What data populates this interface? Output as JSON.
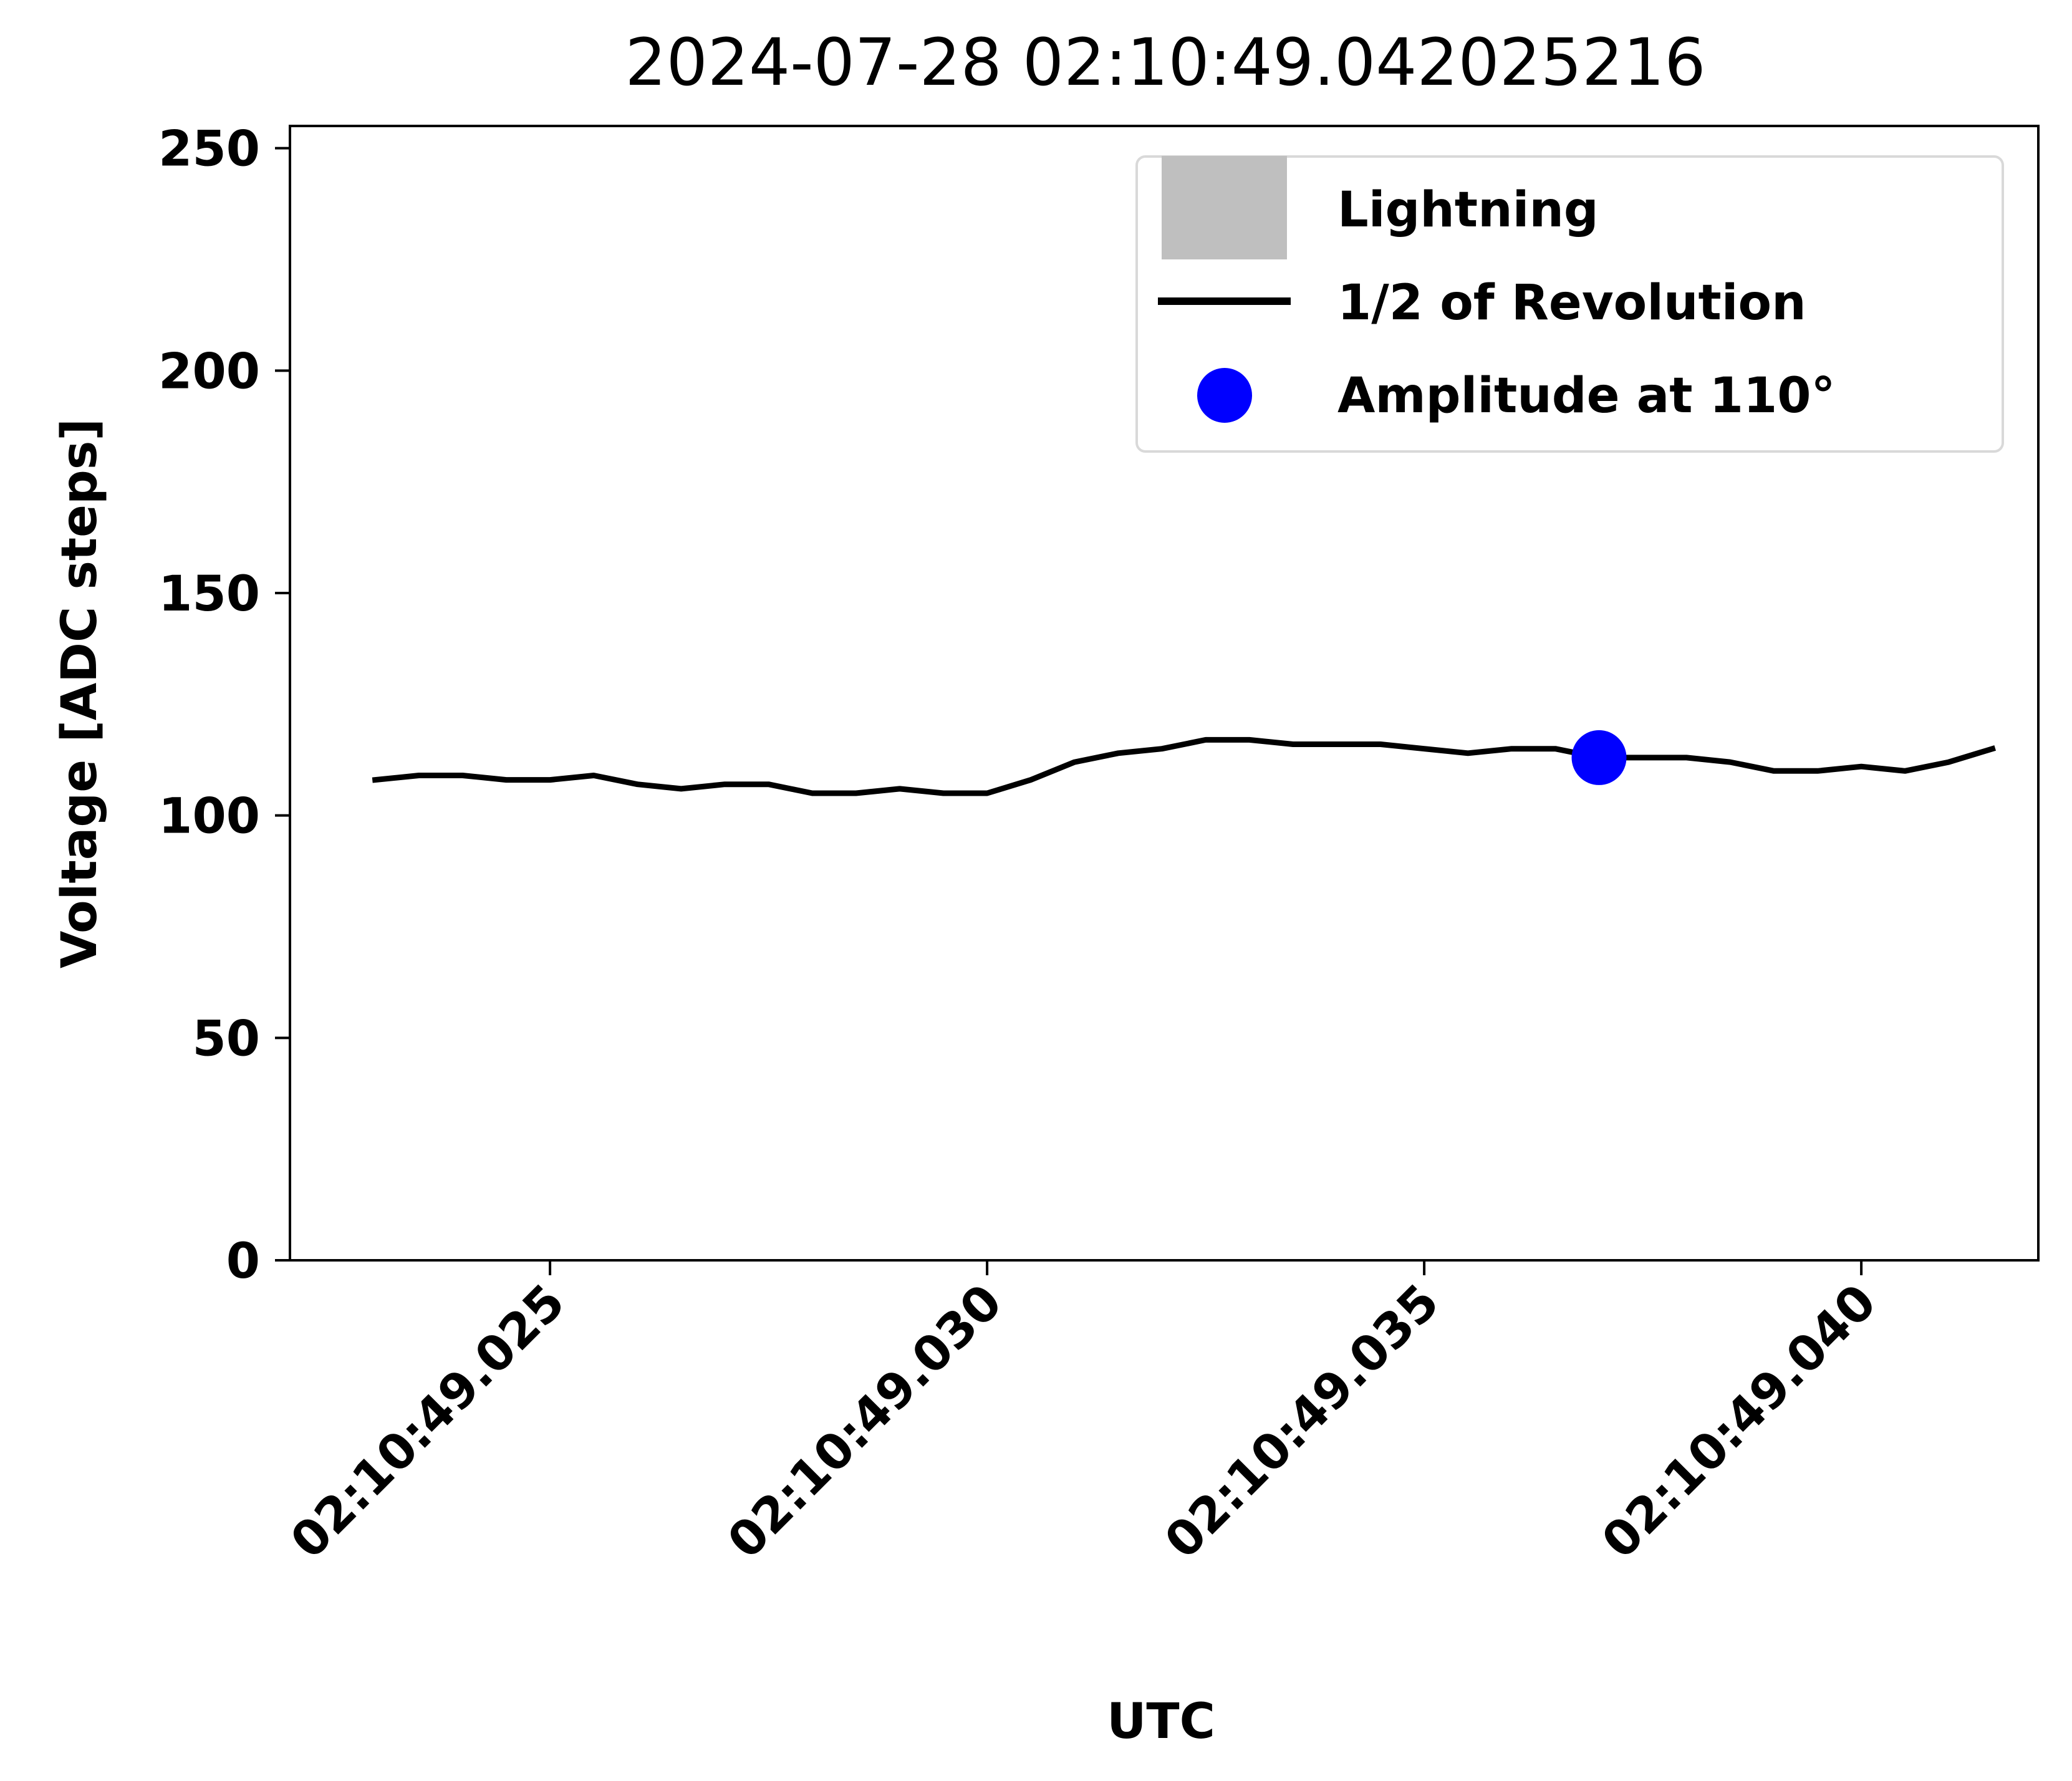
{
  "chart_data": {
    "type": "line",
    "title": "2024-07-28 02:10:49.042025216",
    "xlabel": "UTC",
    "ylabel": "Voltage  [ADC steps]",
    "ylim": [
      0,
      255
    ],
    "xlim": [
      "02:10:49.022025",
      "02:10:49.042025"
    ],
    "y_ticks": [
      0,
      50,
      100,
      150,
      200,
      250
    ],
    "x_ticks": [
      "02:10:49.025",
      "02:10:49.030",
      "02:10:49.035",
      "02:10:49.040"
    ],
    "grid": false,
    "legend_position": "top-right",
    "series": [
      {
        "name": "1/2 of Revolution",
        "color": "#000000",
        "x": [
          "02:10:49.023",
          "02:10:49.0235",
          "02:10:49.024",
          "02:10:49.0245",
          "02:10:49.025",
          "02:10:49.0255",
          "02:10:49.026",
          "02:10:49.0265",
          "02:10:49.027",
          "02:10:49.0275",
          "02:10:49.028",
          "02:10:49.0285",
          "02:10:49.029",
          "02:10:49.0295",
          "02:10:49.030",
          "02:10:49.0305",
          "02:10:49.031",
          "02:10:49.0315",
          "02:10:49.032",
          "02:10:49.0325",
          "02:10:49.033",
          "02:10:49.0335",
          "02:10:49.034",
          "02:10:49.0345",
          "02:10:49.035",
          "02:10:49.0355",
          "02:10:49.036",
          "02:10:49.0365",
          "02:10:49.037",
          "02:10:49.0375",
          "02:10:49.038",
          "02:10:49.0385",
          "02:10:49.039",
          "02:10:49.0395",
          "02:10:49.040",
          "02:10:49.0405",
          "02:10:49.041",
          "02:10:49.0415"
        ],
        "values": [
          108,
          109,
          109,
          108,
          108,
          109,
          107,
          106,
          107,
          107,
          105,
          105,
          106,
          105,
          105,
          108,
          112,
          114,
          115,
          117,
          117,
          116,
          116,
          116,
          115,
          114,
          115,
          115,
          113,
          113,
          113,
          112,
          110,
          110,
          111,
          110,
          112,
          115
        ]
      },
      {
        "name": "Amplitude at 110°",
        "color": "#0000ff",
        "marker": "circle",
        "x": [
          "02:10:49.037"
        ],
        "values": [
          113
        ]
      }
    ],
    "legend": [
      {
        "label": "Lightning",
        "kind": "patch",
        "color": "#bfbfbf"
      },
      {
        "label": "1/2 of Revolution",
        "kind": "line",
        "color": "#000000"
      },
      {
        "label": "Amplitude at 110°",
        "kind": "marker",
        "color": "#0000ff"
      }
    ]
  }
}
